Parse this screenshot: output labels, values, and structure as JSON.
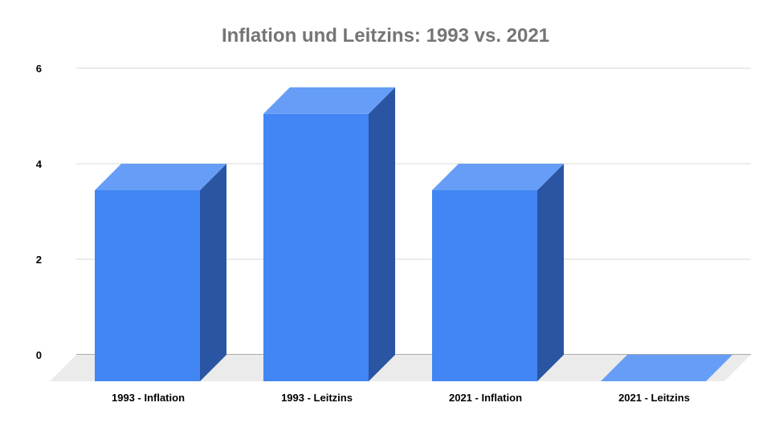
{
  "chart_data": {
    "type": "bar",
    "style": "3d",
    "title": "Inflation und Leitzins: 1993 vs. 2021",
    "categories": [
      "1993 - Inflation",
      "1993 - Leitzins",
      "2021 - Inflation",
      "2021 - Leitzins"
    ],
    "values": [
      4.0,
      5.6,
      4.0,
      0.0
    ],
    "ylim": [
      0,
      6
    ],
    "yticks": [
      0,
      2,
      4,
      6
    ],
    "grid": true,
    "legend": "none",
    "colors": {
      "bar_front": "#4285f4",
      "bar_top": "#669df6",
      "bar_side": "#2a55a3",
      "floor": "#ebebeb",
      "gridline": "#d9d9d9",
      "title": "#757575"
    }
  }
}
